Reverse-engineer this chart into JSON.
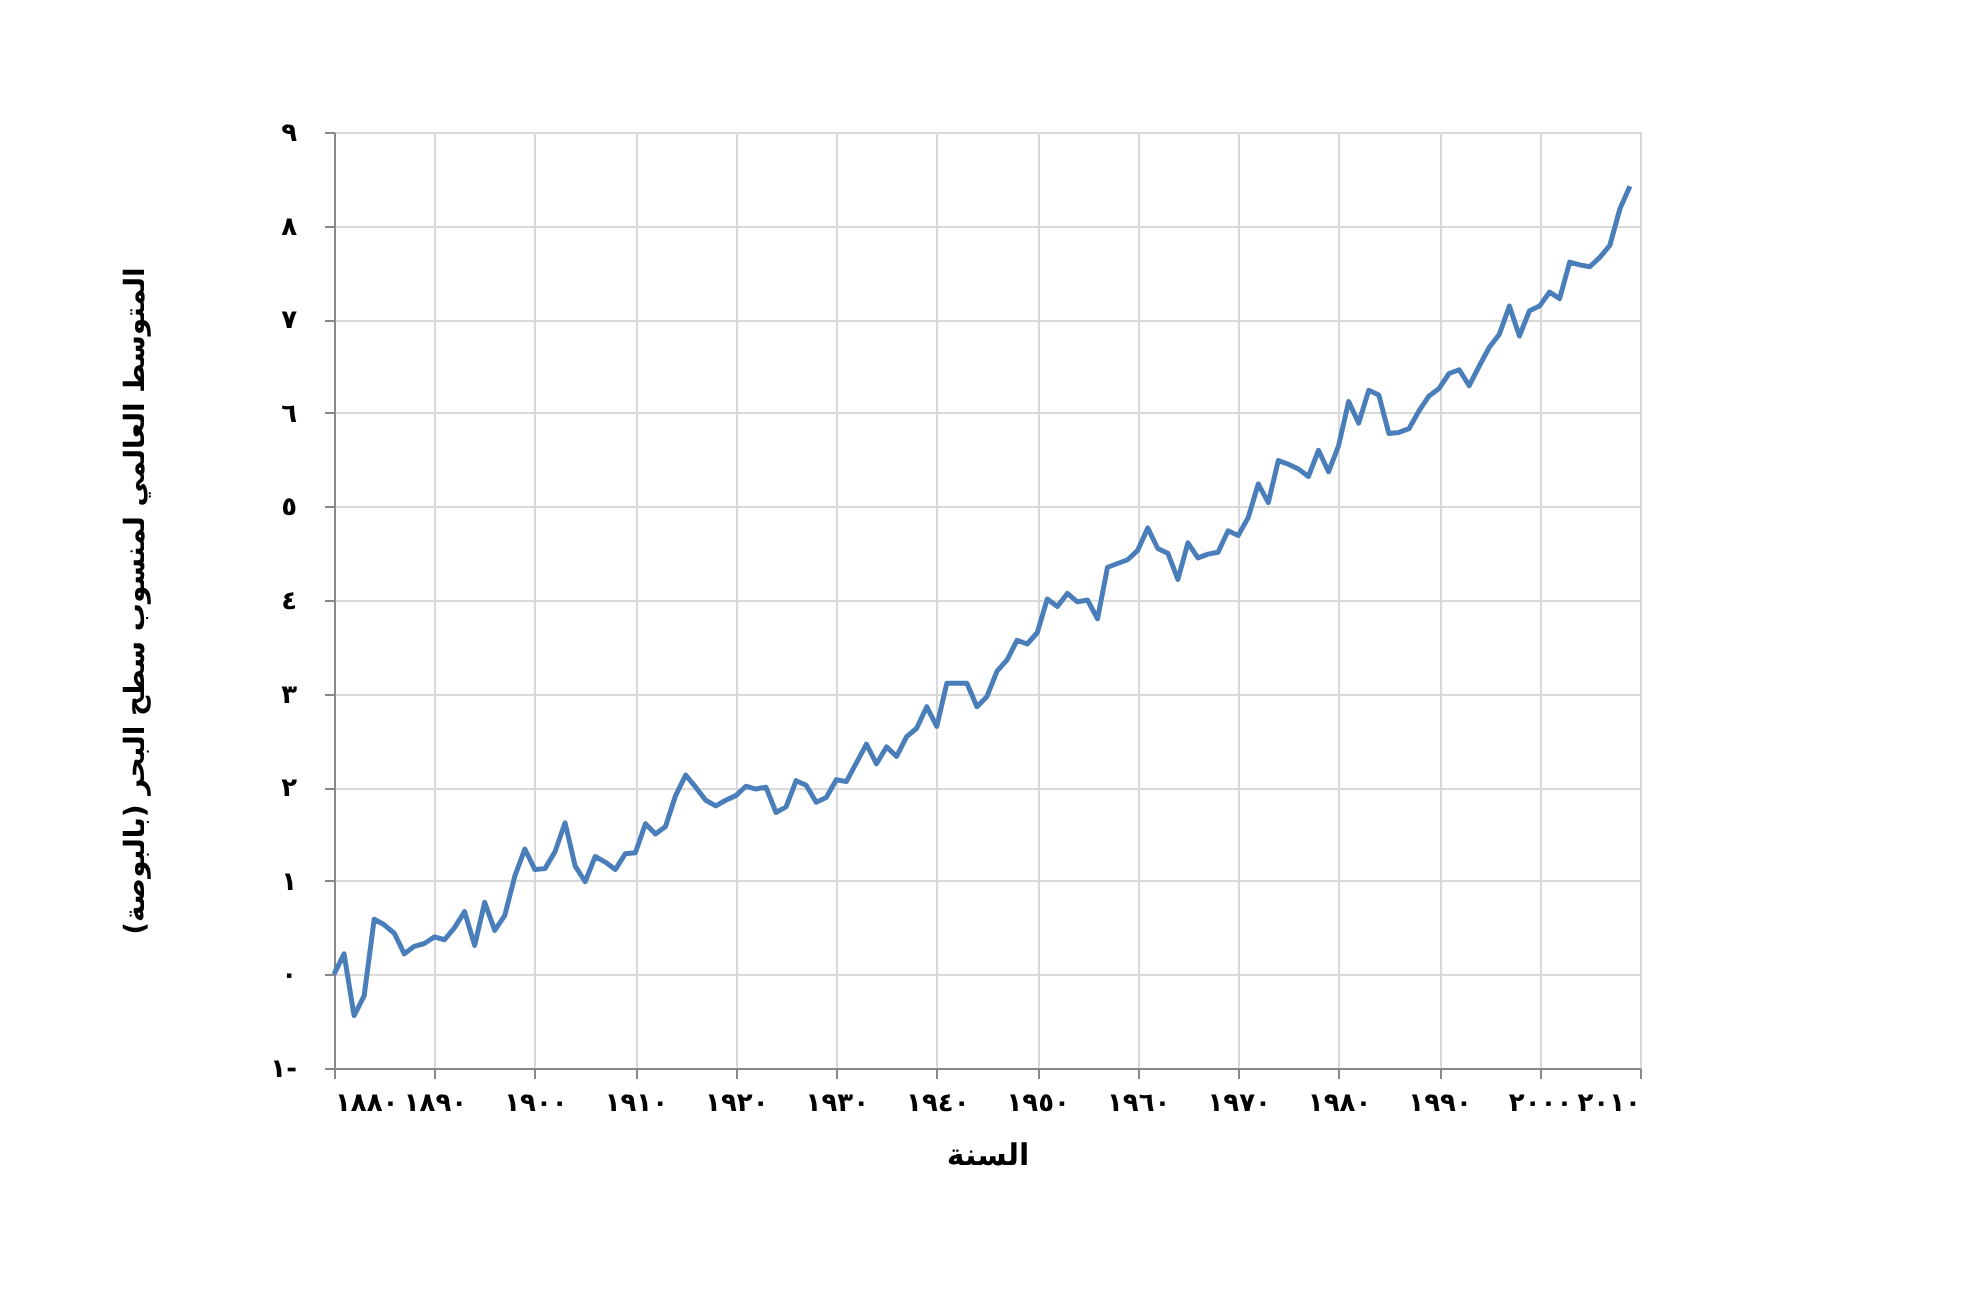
{
  "chart_data": {
    "type": "line",
    "xlabel": "السنة",
    "ylabel": "المتوسط العالمي لمنسوب سطح البحر (بالبوصة)",
    "xlim": [
      1880,
      2010
    ],
    "xticks": [
      {
        "value": 1880,
        "label": "١٨٨٠"
      },
      {
        "value": 1890,
        "label": "١٨٩٠"
      },
      {
        "value": 1900,
        "label": "١٩٠٠"
      },
      {
        "value": 1910,
        "label": "١٩١٠"
      },
      {
        "value": 1920,
        "label": "١٩٢٠"
      },
      {
        "value": 1930,
        "label": "١٩٣٠"
      },
      {
        "value": 1940,
        "label": "١٩٤٠"
      },
      {
        "value": 1950,
        "label": "١٩٥٠"
      },
      {
        "value": 1960,
        "label": "١٩٦٠"
      },
      {
        "value": 1970,
        "label": "١٩٧٠"
      },
      {
        "value": 1980,
        "label": "١٩٨٠"
      },
      {
        "value": 1990,
        "label": "١٩٩٠"
      },
      {
        "value": 2000,
        "label": "٢٠٠٠"
      },
      {
        "value": 2010,
        "label": "٢٠١٠"
      }
    ],
    "ylim": [
      -1,
      9
    ],
    "yticks": [
      {
        "value": -1,
        "label": "١-"
      },
      {
        "value": 0,
        "label": "٠"
      },
      {
        "value": 1,
        "label": "١"
      },
      {
        "value": 2,
        "label": "٢"
      },
      {
        "value": 3,
        "label": "٣"
      },
      {
        "value": 4,
        "label": "٤"
      },
      {
        "value": 5,
        "label": "٥"
      },
      {
        "value": 6,
        "label": "٦"
      },
      {
        "value": 7,
        "label": "٧"
      },
      {
        "value": 8,
        "label": "٨"
      },
      {
        "value": 9,
        "label": "٩"
      }
    ],
    "grid": true,
    "legend": false,
    "marker": "none",
    "line_style": "solid",
    "x": [
      1880,
      1881,
      1882,
      1883,
      1884,
      1885,
      1886,
      1887,
      1888,
      1889,
      1890,
      1891,
      1892,
      1893,
      1894,
      1895,
      1896,
      1897,
      1898,
      1899,
      1900,
      1901,
      1902,
      1903,
      1904,
      1905,
      1906,
      1907,
      1908,
      1909,
      1910,
      1911,
      1912,
      1913,
      1914,
      1915,
      1916,
      1917,
      1918,
      1919,
      1920,
      1921,
      1922,
      1923,
      1924,
      1925,
      1926,
      1927,
      1928,
      1929,
      1930,
      1931,
      1932,
      1933,
      1934,
      1935,
      1936,
      1937,
      1938,
      1939,
      1940,
      1941,
      1942,
      1943,
      1944,
      1945,
      1946,
      1947,
      1948,
      1949,
      1950,
      1951,
      1952,
      1953,
      1954,
      1955,
      1956,
      1957,
      1958,
      1959,
      1960,
      1961,
      1962,
      1963,
      1964,
      1965,
      1966,
      1967,
      1968,
      1969,
      1970,
      1971,
      1972,
      1973,
      1974,
      1975,
      1976,
      1977,
      1978,
      1979,
      1980,
      1981,
      1982,
      1983,
      1984,
      1985,
      1986,
      1987,
      1988,
      1989,
      1990,
      1991,
      1992,
      1993,
      1994,
      1995,
      1996,
      1997,
      1998,
      1999,
      2000,
      2001,
      2002,
      2003,
      2004,
      2005,
      2006,
      2007,
      2008,
      2009
    ],
    "series": [
      {
        "color": "#4a7ebb",
        "values": [
          0,
          0.22,
          -0.44,
          -0.23,
          0.59,
          0.53,
          0.44,
          0.22,
          0.3,
          0.33,
          0.4,
          0.37,
          0.5,
          0.67,
          0.31,
          0.77,
          0.47,
          0.63,
          1.05,
          1.34,
          1.12,
          1.13,
          1.31,
          1.62,
          1.16,
          0.99,
          1.26,
          1.2,
          1.12,
          1.29,
          1.3,
          1.61,
          1.5,
          1.58,
          1.91,
          2.13,
          2.0,
          1.86,
          1.8,
          1.86,
          1.91,
          2.01,
          1.98,
          2.0,
          1.73,
          1.79,
          2.07,
          2.02,
          1.84,
          1.89,
          2.08,
          2.06,
          2.26,
          2.46,
          2.25,
          2.43,
          2.33,
          2.54,
          2.63,
          2.86,
          2.65,
          3.11,
          3.11,
          3.11,
          2.86,
          2.97,
          3.24,
          3.36,
          3.57,
          3.53,
          3.65,
          4.01,
          3.93,
          4.07,
          3.98,
          4.0,
          3.8,
          4.35,
          4.39,
          4.43,
          4.53,
          4.77,
          4.55,
          4.5,
          4.22,
          4.61,
          4.45,
          4.49,
          4.51,
          4.74,
          4.69,
          4.88,
          5.24,
          5.04,
          5.49,
          5.45,
          5.4,
          5.32,
          5.6,
          5.37,
          5.65,
          6.12,
          5.89,
          6.24,
          6.19,
          5.78,
          5.79,
          5.83,
          6.02,
          6.18,
          6.26,
          6.42,
          6.46,
          6.29,
          6.5,
          6.7,
          6.84,
          7.14,
          6.82,
          7.09,
          7.14,
          7.29,
          7.22,
          7.61,
          7.58,
          7.56,
          7.66,
          7.79,
          8.18,
          8.42
        ]
      }
    ]
  }
}
